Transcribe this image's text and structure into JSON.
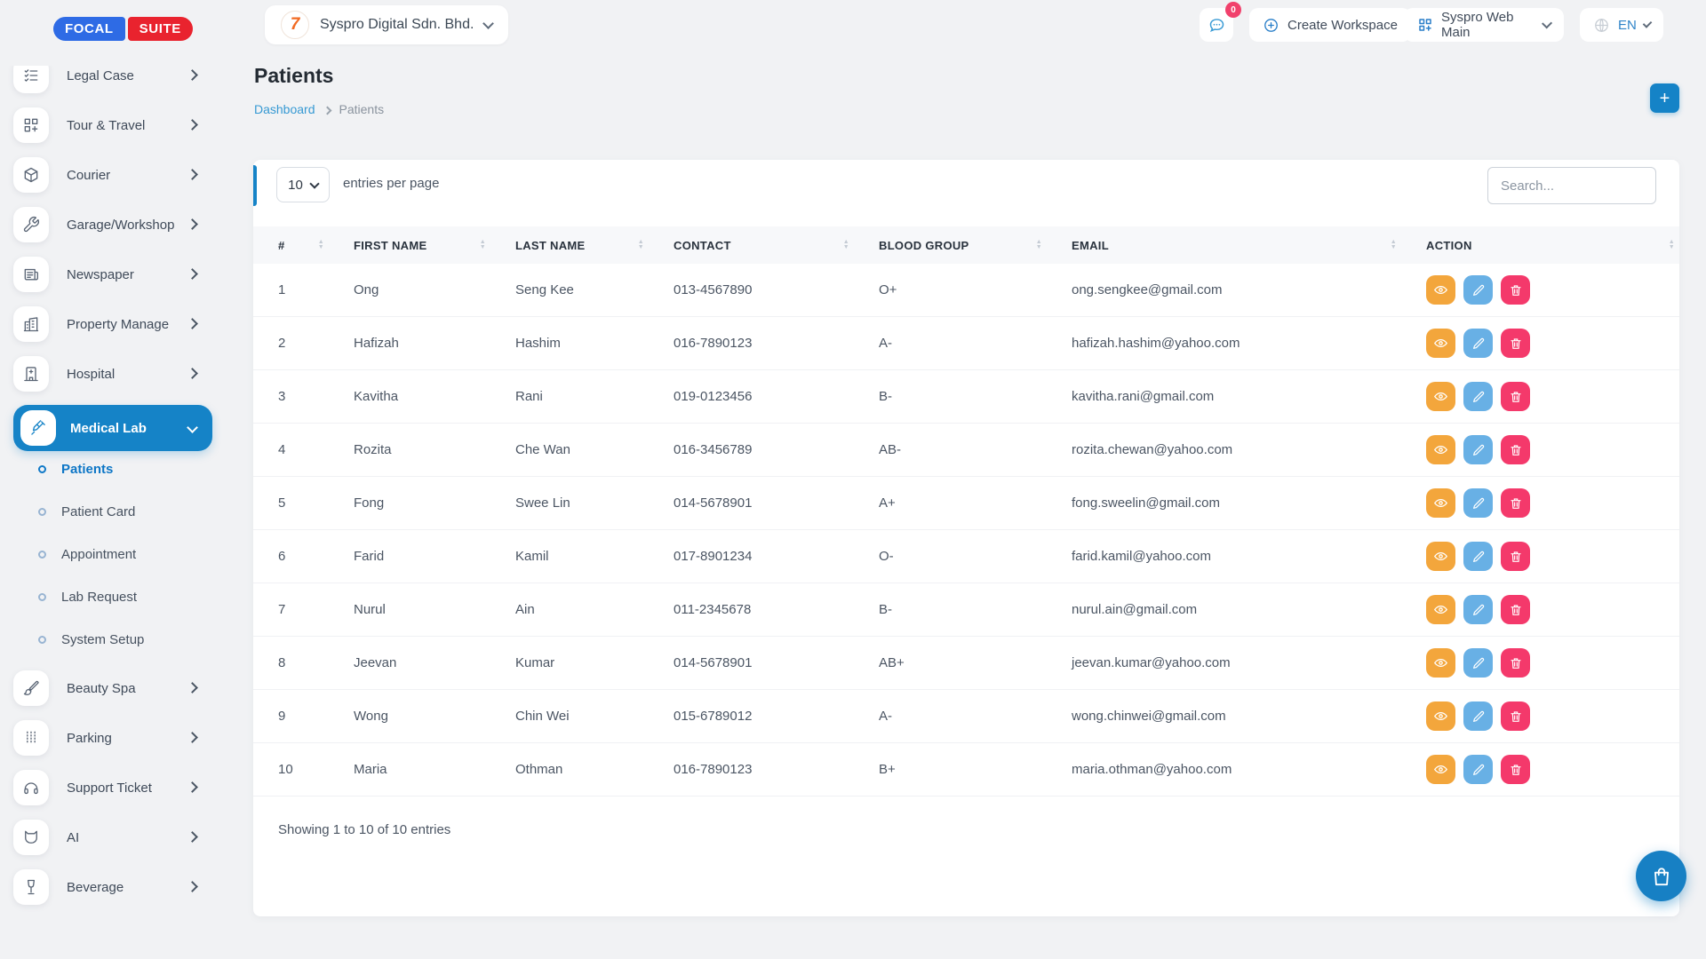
{
  "brand": {
    "focal": "FOCAL",
    "suite": "SUITE"
  },
  "header": {
    "workspace_name": "Syspro Digital Sdn. Bhd.",
    "workspace_logo_glyph": "7",
    "chat_badge": "0",
    "create_workspace_label": "Create Workspace",
    "app_menu_label": "Syspro Web Main",
    "language": "EN"
  },
  "sidebar": {
    "items": [
      {
        "label": "Legal Case",
        "icon": "checklist-icon"
      },
      {
        "label": "Tour & Travel",
        "icon": "grid-plus-icon"
      },
      {
        "label": "Courier",
        "icon": "package-icon"
      },
      {
        "label": "Garage/Workshop",
        "icon": "wrench-icon"
      },
      {
        "label": "Newspaper",
        "icon": "newspaper-icon"
      },
      {
        "label": "Property Manage",
        "icon": "building-icon"
      },
      {
        "label": "Hospital",
        "icon": "hospital-icon"
      },
      {
        "label": "Medical Lab",
        "icon": "syringe-icon",
        "active": true,
        "expanded": true,
        "children": [
          {
            "label": "Patients",
            "active": true
          },
          {
            "label": "Patient Card"
          },
          {
            "label": "Appointment"
          },
          {
            "label": "Lab Request"
          },
          {
            "label": "System Setup"
          }
        ]
      },
      {
        "label": "Beauty Spa",
        "icon": "brush-icon"
      },
      {
        "label": "Parking",
        "icon": "parking-icon"
      },
      {
        "label": "Support Ticket",
        "icon": "headphones-icon"
      },
      {
        "label": "AI",
        "icon": "ai-icon"
      },
      {
        "label": "Beverage",
        "icon": "beverage-icon"
      }
    ]
  },
  "page": {
    "title": "Patients"
  },
  "breadcrumb": {
    "link": "Dashboard",
    "current": "Patients"
  },
  "controls": {
    "entries_value": "10",
    "entries_label": "entries per page",
    "search_placeholder": "Search..."
  },
  "table": {
    "columns": [
      "#",
      "FIRST NAME",
      "LAST NAME",
      "CONTACT",
      "BLOOD GROUP",
      "EMAIL",
      "ACTION"
    ],
    "rows": [
      {
        "no": "1",
        "first_name": "Ong",
        "last_name": "Seng Kee",
        "contact": "013-4567890",
        "blood_group": "O+",
        "email": "ong.sengkee@gmail.com"
      },
      {
        "no": "2",
        "first_name": "Hafizah",
        "last_name": "Hashim",
        "contact": "016-7890123",
        "blood_group": "A-",
        "email": "hafizah.hashim@yahoo.com"
      },
      {
        "no": "3",
        "first_name": "Kavitha",
        "last_name": "Rani",
        "contact": "019-0123456",
        "blood_group": "B-",
        "email": "kavitha.rani@gmail.com"
      },
      {
        "no": "4",
        "first_name": "Rozita",
        "last_name": "Che Wan",
        "contact": "016-3456789",
        "blood_group": "AB-",
        "email": "rozita.chewan@yahoo.com"
      },
      {
        "no": "5",
        "first_name": "Fong",
        "last_name": "Swee Lin",
        "contact": "014-5678901",
        "blood_group": "A+",
        "email": "fong.sweelin@gmail.com"
      },
      {
        "no": "6",
        "first_name": "Farid",
        "last_name": "Kamil",
        "contact": "017-8901234",
        "blood_group": "O-",
        "email": "farid.kamil@yahoo.com"
      },
      {
        "no": "7",
        "first_name": "Nurul",
        "last_name": "Ain",
        "contact": "011-2345678",
        "blood_group": "B-",
        "email": "nurul.ain@gmail.com"
      },
      {
        "no": "8",
        "first_name": "Jeevan",
        "last_name": "Kumar",
        "contact": "014-5678901",
        "blood_group": "AB+",
        "email": "jeevan.kumar@yahoo.com"
      },
      {
        "no": "9",
        "first_name": "Wong",
        "last_name": "Chin Wei",
        "contact": "015-6789012",
        "blood_group": "A-",
        "email": "wong.chinwei@gmail.com"
      },
      {
        "no": "10",
        "first_name": "Maria",
        "last_name": "Othman",
        "contact": "016-7890123",
        "blood_group": "B+",
        "email": "maria.othman@yahoo.com"
      }
    ],
    "footer": "Showing 1 to 10 of 10 entries",
    "actions": [
      "view",
      "edit",
      "delete"
    ]
  },
  "colors": {
    "primary": "#1583c7",
    "view_button": "#f3a63c",
    "edit_button": "#68b0e5",
    "delete_button": "#f4396b",
    "badge": "#f1416c",
    "logo_blue": "#2e6be5",
    "logo_red": "#e9232e"
  }
}
